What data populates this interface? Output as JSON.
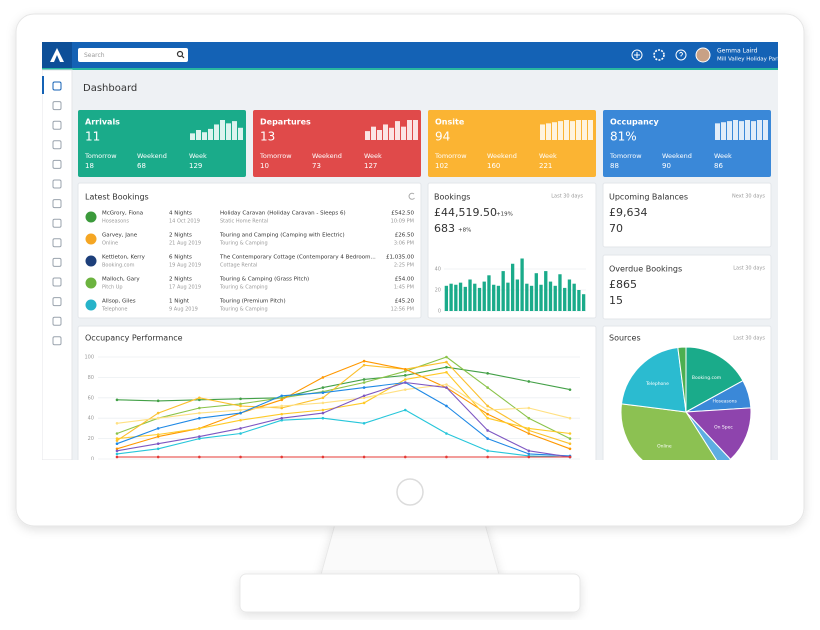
{
  "app": {
    "search_placeholder": "Search",
    "user_name": "Gemma Laird",
    "park_name": "Mill Valley Holiday Park",
    "page_title": "Dashboard"
  },
  "stat_cards": [
    {
      "title": "Arrivals",
      "value": "11",
      "color": "#1aab8a",
      "bars": [
        6,
        9,
        7,
        10,
        14,
        18,
        15,
        17,
        11
      ],
      "stats": [
        {
          "label": "Tomorrow",
          "value": "18"
        },
        {
          "label": "Weekend",
          "value": "68"
        },
        {
          "label": "Week",
          "value": "129"
        }
      ]
    },
    {
      "title": "Departures",
      "value": "13",
      "color": "#e04a4a",
      "bars": [
        8,
        12,
        9,
        14,
        11,
        17,
        12,
        18,
        18
      ],
      "stats": [
        {
          "label": "Tomorrow",
          "value": "10"
        },
        {
          "label": "Weekend",
          "value": "73"
        },
        {
          "label": "Week",
          "value": "127"
        }
      ]
    },
    {
      "title": "Onsite",
      "value": "94",
      "color": "#fbb433",
      "bars": [
        14,
        15,
        16,
        17,
        18,
        17,
        18,
        18,
        18
      ],
      "stats": [
        {
          "label": "Tomorrow",
          "value": "102"
        },
        {
          "label": "Weekend",
          "value": "160"
        },
        {
          "label": "Week",
          "value": "221"
        }
      ]
    },
    {
      "title": "Occupancy",
      "value": "81%",
      "color": "#3a88d8",
      "bars": [
        15,
        16,
        17,
        18,
        17,
        18,
        17,
        18,
        18
      ],
      "stats": [
        {
          "label": "Tomorrow",
          "value": "88"
        },
        {
          "label": "Weekend",
          "value": "90"
        },
        {
          "label": "Week",
          "value": "86"
        }
      ]
    }
  ],
  "latest_bookings": {
    "title": "Latest Bookings",
    "rows": [
      {
        "name": "McGrory, Fiona",
        "source": "Hoseasons",
        "nights": "4 Nights",
        "date": "14 Oct 2019",
        "unit": "Holiday Caravan (Holiday Caravan - Sleeps 6)",
        "unit_type": "Static Home Rental",
        "amount": "£542.50",
        "time": "10:09 PM",
        "logo_color": "#3b9a3b"
      },
      {
        "name": "Garvey, Jane",
        "source": "Online",
        "nights": "2 Nights",
        "date": "21 Aug 2019",
        "unit": "Touring and Camping (Camping with Electric)",
        "unit_type": "Touring & Camping",
        "amount": "£26.50",
        "time": "3:06 PM",
        "logo_color": "#f5a623"
      },
      {
        "name": "Kettleton, Kerry",
        "source": "Booking.com",
        "nights": "6 Nights",
        "date": "19 Aug 2019",
        "unit": "The Contemporary Cottage (Contemporary 4 Bedroom...",
        "unit_type": "Cottage Rental",
        "amount": "£1,035.00",
        "time": "2:25 PM",
        "logo_color": "#1d3f7a"
      },
      {
        "name": "Malloch, Gary",
        "source": "Pitch Up",
        "nights": "2 Nights",
        "date": "17 Aug 2019",
        "unit": "Touring & Camping (Grass Pitch)",
        "unit_type": "Touring & Camping",
        "amount": "£54.00",
        "time": "1:45 PM",
        "logo_color": "#6cb33f"
      },
      {
        "name": "Allsop, Giles",
        "source": "Telephone",
        "nights": "1 Night",
        "date": "9 Aug 2019",
        "unit": "Touring (Premium Pitch)",
        "unit_type": "Touring & Camping",
        "amount": "£45.20",
        "time": "12:56 PM",
        "logo_color": "#26b3c9"
      }
    ]
  },
  "bookings": {
    "title": "Bookings",
    "period": "Last 30 days",
    "amount": "£44,519.50",
    "amount_change": "+19%",
    "count": "683",
    "count_change": "+8%"
  },
  "upcoming_balances": {
    "title": "Upcoming Balances",
    "period": "Next 30 days",
    "amount": "£9,634",
    "count": "70"
  },
  "overdue_bookings": {
    "title": "Overdue Bookings",
    "period": "Last 30 days",
    "amount": "£865",
    "count": "15"
  },
  "sources_period": "Last 30 days",
  "chart_data": [
    {
      "type": "line",
      "title": "Occupancy Performance",
      "ylim": [
        0,
        100
      ],
      "yticks": [
        0,
        20,
        40,
        60,
        80,
        100
      ],
      "grid": true,
      "series": [
        {
          "name": null,
          "color": "#43a047",
          "values": [
            58,
            57,
            58,
            59,
            60,
            70,
            78,
            82,
            90,
            84,
            76,
            68
          ]
        },
        {
          "name": null,
          "color": "#8bc34a",
          "values": [
            25,
            40,
            50,
            54,
            60,
            66,
            75,
            86,
            100,
            70,
            40,
            20
          ]
        },
        {
          "name": null,
          "color": "#fbc02d",
          "values": [
            18,
            45,
            60,
            52,
            50,
            60,
            92,
            88,
            95,
            52,
            28,
            15
          ]
        },
        {
          "name": null,
          "color": "#ff9800",
          "values": [
            10,
            22,
            30,
            45,
            58,
            80,
            96,
            88,
            70,
            44,
            25,
            10
          ]
        },
        {
          "name": null,
          "color": "#ffca28",
          "values": [
            20,
            24,
            30,
            38,
            44,
            48,
            55,
            78,
            85,
            40,
            30,
            25
          ]
        },
        {
          "name": null,
          "color": "#ffe082",
          "values": [
            35,
            40,
            45,
            48,
            52,
            55,
            60,
            68,
            73,
            48,
            50,
            40
          ]
        },
        {
          "name": null,
          "color": "#1e88e5",
          "values": [
            15,
            30,
            40,
            45,
            62,
            65,
            70,
            75,
            52,
            20,
            5,
            3
          ]
        },
        {
          "name": null,
          "color": "#26c6da",
          "values": [
            5,
            10,
            20,
            25,
            38,
            40,
            35,
            48,
            25,
            8,
            3,
            2
          ]
        },
        {
          "name": null,
          "color": "#7e57c2",
          "values": [
            8,
            15,
            22,
            30,
            40,
            45,
            62,
            75,
            70,
            28,
            8,
            2
          ]
        },
        {
          "name": null,
          "color": "#e53935",
          "values": [
            2,
            2,
            2,
            2,
            2,
            2,
            2,
            2,
            2,
            2,
            2,
            2
          ]
        }
      ]
    },
    {
      "type": "bar",
      "color": "#1aab8a",
      "ylim": [
        0,
        60
      ],
      "yticks": [
        0,
        20,
        40
      ],
      "grid": true,
      "values": [
        24,
        26,
        25,
        27,
        23,
        30,
        26,
        22,
        28,
        34,
        25,
        24,
        38,
        27,
        45,
        30,
        50,
        26,
        24,
        36,
        25,
        38,
        28,
        24,
        35,
        22,
        30,
        26,
        20,
        16
      ]
    },
    {
      "type": "pie",
      "title": "Sources",
      "categories": [
        "Booking.com",
        "Hoseasons",
        "On Spec",
        null,
        "Online",
        "Telephone",
        null
      ],
      "values": [
        17,
        7,
        14,
        3,
        36,
        21,
        2
      ],
      "colors": [
        "#1aab8a",
        "#3a88d8",
        "#8e44ad",
        "#5dade2",
        "#8cc152",
        "#2bbbd0",
        "#4caf50"
      ]
    }
  ]
}
